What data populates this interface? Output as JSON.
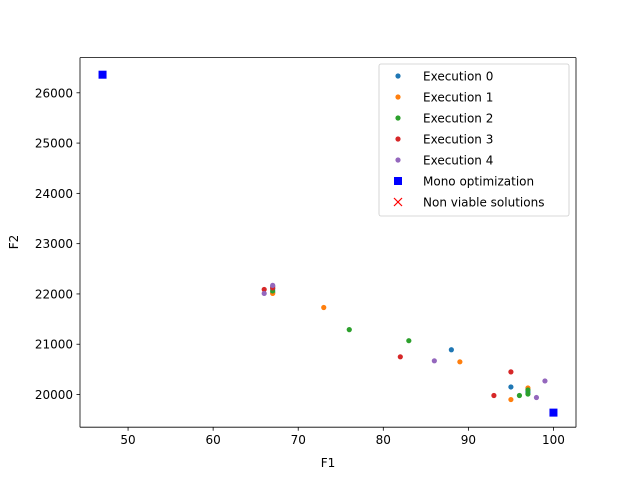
{
  "chart_data": {
    "type": "scatter",
    "title": "",
    "xlabel": "F1",
    "ylabel": "F2",
    "xlim": [
      44.35,
      102.65
    ],
    "ylim": [
      19350,
      26700
    ],
    "xticks": [
      50,
      60,
      70,
      80,
      90,
      100
    ],
    "yticks": [
      20000,
      21000,
      22000,
      23000,
      24000,
      25000,
      26000
    ],
    "grid": false,
    "legend_position": "top-right",
    "series": [
      {
        "name": "Execution 0",
        "color": "#1f77b4",
        "marker": "dot",
        "points": [
          [
            67,
            22030
          ],
          [
            67,
            22100
          ],
          [
            67,
            22150
          ],
          [
            88,
            20890
          ],
          [
            95,
            20150
          ],
          [
            97,
            20050
          ]
        ]
      },
      {
        "name": "Execution 1",
        "color": "#ff7f0e",
        "marker": "dot",
        "points": [
          [
            67,
            22010
          ],
          [
            73,
            21730
          ],
          [
            89,
            20650
          ],
          [
            95,
            19900
          ],
          [
            97,
            20130
          ]
        ]
      },
      {
        "name": "Execution 2",
        "color": "#2ca02c",
        "marker": "dot",
        "points": [
          [
            67,
            22060
          ],
          [
            76,
            21290
          ],
          [
            83,
            21070
          ],
          [
            96,
            19980
          ],
          [
            97,
            20010
          ],
          [
            97,
            20090
          ]
        ]
      },
      {
        "name": "Execution 3",
        "color": "#d62728",
        "marker": "dot",
        "points": [
          [
            66,
            22090
          ],
          [
            67,
            22120
          ],
          [
            82,
            20750
          ],
          [
            93,
            19980
          ],
          [
            95,
            20450
          ]
        ]
      },
      {
        "name": "Execution 4",
        "color": "#9467bd",
        "marker": "dot",
        "points": [
          [
            66,
            22010
          ],
          [
            67,
            22170
          ],
          [
            86,
            20670
          ],
          [
            98,
            19940
          ],
          [
            99,
            20270
          ]
        ]
      },
      {
        "name": "Mono optimization",
        "color": "#0000ff",
        "marker": "square",
        "points": [
          [
            47,
            26360
          ],
          [
            100,
            19640
          ]
        ]
      },
      {
        "name": "Non viable solutions",
        "color": "#ff0000",
        "marker": "x",
        "points": []
      }
    ]
  }
}
